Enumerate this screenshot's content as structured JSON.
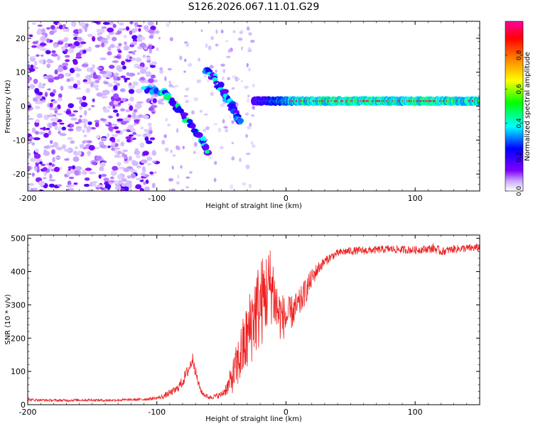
{
  "title": "S126.2026.067.11.01.G29",
  "chart_data": [
    {
      "type": "heatmap",
      "xlabel": "Height of straight line (km)",
      "ylabel": "Frequency (Hz)",
      "xlim": [
        -200,
        150
      ],
      "ylim": [
        -25,
        25
      ],
      "xticks": [
        -200,
        -100,
        0,
        100
      ],
      "xtick_labels": [
        "-200",
        "-100",
        "0",
        "100"
      ],
      "yticks": [
        -20,
        -10,
        0,
        10,
        20
      ],
      "ytick_labels": [
        "-20",
        "-10",
        "0",
        "10",
        "20"
      ],
      "colorbar": {
        "label": "Normalized spectral amplitude",
        "range": [
          0.0,
          1.0
        ],
        "ticks": [
          0.0,
          0.2,
          0.4,
          0.6,
          0.8
        ],
        "tick_labels": [
          "0.0",
          "0.2",
          "0.4",
          "0.6",
          "0.8"
        ],
        "colors": [
          "#ffffff",
          "#8000ff",
          "#0000ff",
          "#00ffff",
          "#00ff00",
          "#ffff00",
          "#ff8000",
          "#ff0000",
          "#ff00a0"
        ]
      },
      "features": [
        {
          "name": "strong-signal-line",
          "x_range": [
            -25,
            150
          ],
          "frequency_hz": 1.5,
          "peak_amplitude": 0.95
        },
        {
          "name": "descending-arc-1",
          "points": [
            [
              -110,
              5
            ],
            [
              -95,
              4
            ],
            [
              -85,
              0
            ],
            [
              -75,
              -5
            ],
            [
              -65,
              -10
            ],
            [
              -60,
              -14
            ]
          ],
          "peak_amplitude": 0.35
        },
        {
          "name": "descending-arc-2",
          "points": [
            [
              -62,
              11
            ],
            [
              -55,
              8
            ],
            [
              -48,
              4
            ],
            [
              -42,
              0
            ],
            [
              -38,
              -3
            ],
            [
              -34,
              -5
            ]
          ],
          "peak_amplitude": 0.3
        },
        {
          "name": "noise-region",
          "x_range": [
            -200,
            -100
          ],
          "amplitude_range": [
            0.0,
            0.25
          ]
        }
      ]
    },
    {
      "type": "line",
      "xlabel": "Height of straight line (km)",
      "ylabel": "SNR (10 * v/v)",
      "xlim": [
        -200,
        150
      ],
      "ylim": [
        0,
        510
      ],
      "xticks": [
        -200,
        -100,
        0,
        100
      ],
      "xtick_labels": [
        "-200",
        "-100",
        "0",
        "100"
      ],
      "yticks": [
        0,
        100,
        200,
        300,
        400,
        500
      ],
      "ytick_labels": [
        "0",
        "100",
        "200",
        "300",
        "400",
        "500"
      ],
      "color": "#ee2020",
      "series": [
        {
          "name": "SNR",
          "x": [
            -200,
            -190,
            -180,
            -170,
            -160,
            -150,
            -140,
            -130,
            -120,
            -110,
            -100,
            -95,
            -90,
            -85,
            -80,
            -75,
            -72,
            -70,
            -68,
            -65,
            -60,
            -55,
            -50,
            -45,
            -40,
            -35,
            -30,
            -25,
            -20,
            -15,
            -12,
            -10,
            -8,
            -5,
            0,
            5,
            10,
            15,
            20,
            25,
            30,
            35,
            40,
            45,
            50,
            60,
            70,
            80,
            90,
            100,
            110,
            115,
            120,
            130,
            140,
            150
          ],
          "values": [
            15,
            14,
            13,
            13,
            14,
            14,
            13,
            14,
            15,
            16,
            20,
            25,
            35,
            45,
            70,
            110,
            140,
            100,
            65,
            35,
            22,
            25,
            30,
            55,
            95,
            150,
            200,
            270,
            300,
            340,
            360,
            350,
            300,
            270,
            260,
            280,
            300,
            340,
            380,
            410,
            430,
            445,
            455,
            460,
            462,
            463,
            465,
            468,
            466,
            465,
            468,
            470,
            460,
            468,
            470,
            472
          ],
          "noise": [
            4,
            4,
            4,
            4,
            4,
            4,
            4,
            4,
            4,
            4,
            5,
            8,
            10,
            12,
            18,
            20,
            20,
            18,
            12,
            8,
            6,
            8,
            10,
            25,
            60,
            90,
            110,
            130,
            140,
            130,
            120,
            110,
            100,
            80,
            60,
            50,
            45,
            40,
            30,
            20,
            15,
            12,
            12,
            12,
            12,
            12,
            12,
            12,
            12,
            12,
            12,
            15,
            12,
            12,
            12,
            12
          ]
        }
      ]
    }
  ]
}
